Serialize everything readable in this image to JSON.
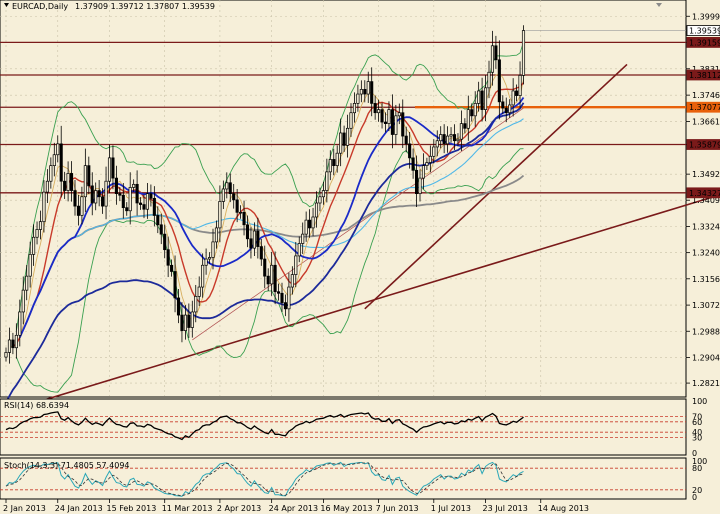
{
  "window": {
    "symbol_label": "EURCAD,Daily",
    "ohlc_text": "1.37909 1.39712 1.37807 1.39539"
  },
  "chart_data": [
    {
      "type": "line",
      "title": "EURCAD,Daily",
      "ylim": [
        1.278,
        1.402
      ],
      "y_ticks": [
        "1.39999",
        "1.39159",
        "1.38312",
        "1.37465",
        "1.36615",
        "1.35879",
        "1.34927",
        "1.34090",
        "1.33245",
        "1.32405",
        "1.31565",
        "1.30720",
        "1.29880",
        "1.29040",
        "1.28215"
      ],
      "x_labels": [
        "2 Jan 2013",
        "24 Jan 2013",
        "15 Feb 2013",
        "11 Mar 2013",
        "2 Apr 2013",
        "24 Apr 2013",
        "16 May 2013",
        "7 Jun 2013",
        "1 Jul 2013",
        "23 Jul 2013",
        "14 Aug 2013"
      ],
      "x_label_bars": [
        0,
        15,
        30,
        46,
        62,
        77,
        92,
        108,
        124,
        139,
        155
      ],
      "last_price": 1.39539,
      "price_labels": [
        {
          "text": "1.39539",
          "value": 1.39539,
          "fill": "#ffffff",
          "border": "#000000",
          "textcolor": "#000000"
        },
        {
          "text": "1.39159",
          "value": 1.39159,
          "fill": "#7a1a1a",
          "border": "#7a1a1a",
          "textcolor": "#ffffff"
        },
        {
          "text": "1.38112",
          "value": 1.38112,
          "fill": "#7a1a1a",
          "border": "#7a1a1a",
          "textcolor": "#ffffff"
        },
        {
          "text": "1.37077",
          "value": 1.37077,
          "fill": "#e8600a",
          "border": "#e8600a",
          "textcolor": "#ffffff"
        },
        {
          "text": "1.35879",
          "value": 1.35879,
          "fill": "#7a1a1a",
          "border": "#7a1a1a",
          "textcolor": "#ffffff"
        },
        {
          "text": "1.34327",
          "value": 1.34327,
          "fill": "#7a1a1a",
          "border": "#7a1a1a",
          "textcolor": "#ffffff"
        }
      ],
      "hlines": [
        {
          "value": 1.39159,
          "color": "#7a1a1a"
        },
        {
          "value": 1.38112,
          "color": "#7a1a1a"
        },
        {
          "value": 1.37077,
          "color": "#7a1a1a"
        },
        {
          "value": 1.35879,
          "color": "#7a1a1a"
        },
        {
          "value": 1.34327,
          "color": "#7a1a1a"
        }
      ],
      "trendlines": [
        {
          "from": [
            -3,
            1.272
          ],
          "to": [
            214,
            1.345
          ],
          "color": "#7a1a1a"
        },
        {
          "from": [
            104,
            1.306
          ],
          "to": [
            180,
            1.3845
          ],
          "color": "#7a1a1a"
        }
      ],
      "close": [
        1.292,
        1.296,
        1.2935,
        1.2975,
        1.305,
        1.312,
        1.3165,
        1.3235,
        1.329,
        1.3315,
        1.334,
        1.3435,
        1.347,
        1.352,
        1.3555,
        1.359,
        1.347,
        1.344,
        1.3495,
        1.344,
        1.339,
        1.336,
        1.342,
        1.352,
        1.3455,
        1.34,
        1.344,
        1.342,
        1.339,
        1.347,
        1.3545,
        1.348,
        1.343,
        1.3425,
        1.3385,
        1.3375,
        1.345,
        1.346,
        1.34,
        1.3395,
        1.338,
        1.343,
        1.3415,
        1.336,
        1.333,
        1.33,
        1.325,
        1.32,
        1.318,
        1.3095,
        1.304,
        1.299,
        1.304,
        1.3,
        1.305,
        1.31,
        1.313,
        1.32,
        1.322,
        1.3225,
        1.3275,
        1.332,
        1.3405,
        1.3445,
        1.3465,
        1.343,
        1.341,
        1.337,
        1.337,
        1.333,
        1.3285,
        1.3255,
        1.331,
        1.326,
        1.322,
        1.3165,
        1.314,
        1.32,
        1.3115,
        1.311,
        1.308,
        1.306,
        1.313,
        1.317,
        1.323,
        1.327,
        1.33,
        1.3345,
        1.332,
        1.3355,
        1.34,
        1.342,
        1.344,
        1.35,
        1.354,
        1.352,
        1.356,
        1.3625,
        1.3585,
        1.364,
        1.369,
        1.372,
        1.375,
        1.3765,
        1.375,
        1.379,
        1.372,
        1.369,
        1.37,
        1.366,
        1.3655,
        1.37,
        1.362,
        1.368,
        1.369,
        1.3615,
        1.359,
        1.3545,
        1.3505,
        1.343,
        1.348,
        1.352,
        1.353,
        1.355,
        1.358,
        1.36,
        1.362,
        1.359,
        1.3615,
        1.362,
        1.36,
        1.3605,
        1.3655,
        1.364,
        1.37,
        1.368,
        1.372,
        1.376,
        1.37,
        1.377,
        1.382,
        1.3905,
        1.386,
        1.3725,
        1.3705,
        1.369,
        1.3715,
        1.376,
        1.3745,
        1.381,
        1.3954
      ],
      "series": [
        {
          "name": "",
          "color": "#1c2a9a",
          "values": [
            1.276,
            1.278,
            1.28,
            1.2815,
            1.2832,
            1.285,
            1.2868,
            1.2885,
            1.2902,
            1.292,
            1.2938,
            1.2958,
            1.298,
            1.3002,
            1.3022,
            1.304,
            1.3052,
            1.3062,
            1.3072,
            1.3078,
            1.3082,
            1.3085,
            1.3092,
            1.3102,
            1.3108,
            1.3112,
            1.3118,
            1.3122,
            1.3126,
            1.3132,
            1.314,
            1.3144,
            1.3146,
            1.3148,
            1.3148,
            1.3148,
            1.315,
            1.3152,
            1.3152,
            1.315,
            1.3148,
            1.3148,
            1.3146,
            1.3142,
            1.3138,
            1.3132,
            1.3124,
            1.3116,
            1.3108,
            1.3098,
            1.3086,
            1.3072,
            1.3062,
            1.305,
            1.3042,
            1.3036,
            1.3032,
            1.303,
            1.303,
            1.303,
            1.3032,
            1.3036,
            1.3042,
            1.305,
            1.3058,
            1.3066,
            1.3072,
            1.3078,
            1.3082,
            1.3086,
            1.3088,
            1.3088,
            1.309,
            1.309,
            1.309,
            1.3088,
            1.3086,
            1.3086,
            1.3082,
            1.3078,
            1.3075,
            1.3072,
            1.3072,
            1.3074,
            1.3078,
            1.3084,
            1.3092,
            1.3102,
            1.311,
            1.312,
            1.3132,
            1.3144,
            1.3156,
            1.317,
            1.3186,
            1.32,
            1.3216,
            1.3234,
            1.325,
            1.3268,
            1.3288,
            1.3308,
            1.333,
            1.3352,
            1.3372,
            1.3394,
            1.3412,
            1.3428,
            1.3444,
            1.3458,
            1.347,
            1.3484,
            1.3494,
            1.3505,
            1.3514,
            1.352,
            1.3524,
            1.3526,
            1.3525,
            1.3521,
            1.352,
            1.3522,
            1.3524,
            1.3528,
            1.3532,
            1.3538,
            1.3545,
            1.355,
            1.3556,
            1.3562,
            1.3566,
            1.357,
            1.3578,
            1.3584,
            1.3592,
            1.3598,
            1.3606,
            1.3616,
            1.3622,
            1.3632,
            1.3644,
            1.366,
            1.3672,
            1.3676,
            1.368,
            1.3682,
            1.3686,
            1.3692,
            1.3696,
            1.3704,
            1.3722
          ]
        }
      ],
      "rsi": {
        "label": "RSI(14) 68.6394",
        "scale": [
          "100",
          "70",
          "60",
          "40",
          "30",
          "0"
        ],
        "levels": [
          70,
          60,
          40,
          30
        ],
        "values": [
          45,
          48,
          47,
          50,
          56,
          60,
          62,
          66,
          68,
          68,
          69,
          74,
          75,
          77,
          78,
          79,
          66,
          63,
          68,
          62,
          57,
          54,
          59,
          67,
          60,
          55,
          58,
          56,
          53,
          61,
          67,
          60,
          55,
          54,
          51,
          50,
          57,
          58,
          52,
          52,
          50,
          55,
          53,
          48,
          46,
          44,
          40,
          37,
          36,
          31,
          29,
          26,
          33,
          30,
          37,
          43,
          45,
          52,
          54,
          54,
          59,
          62,
          68,
          70,
          71,
          66,
          63,
          58,
          58,
          54,
          49,
          46,
          52,
          47,
          43,
          39,
          37,
          45,
          36,
          36,
          34,
          33,
          42,
          46,
          52,
          55,
          57,
          61,
          58,
          61,
          65,
          66,
          67,
          70,
          72,
          69,
          71,
          74,
          69,
          72,
          74,
          75,
          76,
          77,
          75,
          77,
          68,
          65,
          66,
          61,
          61,
          66,
          57,
          63,
          64,
          56,
          53,
          49,
          46,
          40,
          46,
          50,
          51,
          53,
          56,
          58,
          60,
          56,
          59,
          59,
          56,
          57,
          62,
          60,
          65,
          63,
          67,
          70,
          62,
          69,
          72,
          76,
          71,
          57,
          55,
          54,
          57,
          61,
          59,
          64,
          69
        ]
      },
      "stoch": {
        "label": "Stoch(14,3,3) 71.4805 57.4094",
        "scale": [
          "100",
          "80",
          "20",
          "0"
        ],
        "levels": [
          80,
          20
        ],
        "main": [
          30,
          40,
          38,
          45,
          60,
          72,
          80,
          85,
          88,
          86,
          85,
          92,
          90,
          93,
          94,
          95,
          60,
          50,
          62,
          45,
          30,
          25,
          40,
          65,
          48,
          35,
          45,
          40,
          32,
          55,
          72,
          55,
          40,
          38,
          30,
          28,
          48,
          52,
          35,
          34,
          30,
          42,
          38,
          25,
          20,
          15,
          10,
          8,
          8,
          4,
          3,
          2,
          15,
          10,
          22,
          35,
          42,
          58,
          64,
          65,
          75,
          82,
          92,
          94,
          95,
          85,
          78,
          65,
          64,
          50,
          38,
          30,
          45,
          32,
          22,
          12,
          10,
          26,
          6,
          6,
          4,
          3,
          22,
          34,
          50,
          60,
          66,
          76,
          70,
          78,
          86,
          88,
          90,
          94,
          95,
          88,
          92,
          96,
          85,
          90,
          93,
          94,
          95,
          96,
          92,
          95,
          70,
          60,
          62,
          48,
          46,
          60,
          35,
          52,
          55,
          30,
          22,
          15,
          10,
          5,
          18,
          30,
          34,
          40,
          50,
          56,
          62,
          50,
          58,
          58,
          50,
          52,
          66,
          60,
          75,
          70,
          82,
          90,
          65,
          85,
          92,
          96,
          88,
          50,
          45,
          42,
          52,
          62,
          57,
          66,
          71
        ]
      }
    }
  ]
}
